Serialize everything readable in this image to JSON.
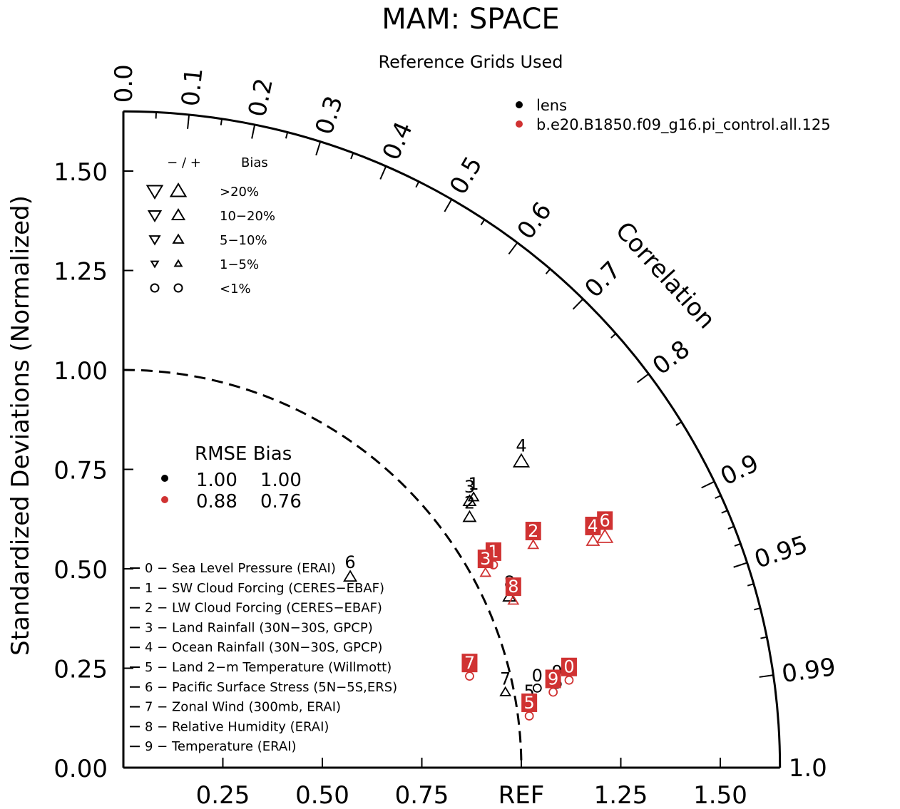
{
  "chart_data": {
    "type": "scatter",
    "diagram": "taylor",
    "title": "MAM: SPACE",
    "subtitle": "Reference Grids Used",
    "ylabel": "Standardized Deviations (Normalized)",
    "correlation_label": "Correlation",
    "x_ticks": [
      "0.25",
      "0.50",
      "0.75",
      "REF",
      "1.25",
      "1.50"
    ],
    "y_ticks": [
      "0.00",
      "0.25",
      "0.50",
      "0.75",
      "1.00",
      "1.25",
      "1.50"
    ],
    "corr_ticks": [
      "0.0",
      "0.1",
      "0.2",
      "0.3",
      "0.4",
      "0.5",
      "0.6",
      "0.7",
      "0.8",
      "0.9",
      "0.95",
      "0.99",
      "1.0"
    ],
    "xlim": [
      0,
      1.65
    ],
    "ylim": [
      0,
      1.65
    ],
    "ref_arc_radius": 1.0,
    "series": [
      {
        "name": "lens",
        "color": "#000000",
        "points": [
          {
            "id": "0",
            "x": 1.04,
            "y": 0.2,
            "bias": "<1%"
          },
          {
            "id": "1",
            "x": 0.88,
            "y": 0.68,
            "bias": "5-10%"
          },
          {
            "id": "2",
            "x": 0.87,
            "y": 0.63,
            "bias": "10-20%"
          },
          {
            "id": "3",
            "x": 0.87,
            "y": 0.67,
            "bias": "10-20%"
          },
          {
            "id": "4",
            "x": 1.0,
            "y": 0.77,
            "bias": ">20%"
          },
          {
            "id": "5",
            "x": 1.02,
            "y": 0.16,
            "bias": "<1%"
          },
          {
            "id": "6",
            "x": 0.57,
            "y": 0.48,
            "bias": "10-20%"
          },
          {
            "id": "7",
            "x": 0.96,
            "y": 0.19,
            "bias": "5-10%"
          },
          {
            "id": "8",
            "x": 0.97,
            "y": 0.43,
            "bias": "10-20%"
          },
          {
            "id": "9",
            "x": 1.09,
            "y": 0.21,
            "bias": "<1%"
          }
        ]
      },
      {
        "name": "b.e20.B1850.f09_g16.pi_control.all.125",
        "color": "#d03232",
        "points": [
          {
            "id": "0",
            "x": 1.12,
            "y": 0.22,
            "bias": "<1%"
          },
          {
            "id": "1",
            "x": 0.93,
            "y": 0.51,
            "bias": "<1%"
          },
          {
            "id": "2",
            "x": 1.03,
            "y": 0.56,
            "bias": "5-10%"
          },
          {
            "id": "3",
            "x": 0.91,
            "y": 0.49,
            "bias": "5-10%"
          },
          {
            "id": "4",
            "x": 1.18,
            "y": 0.57,
            "bias": "10-20%"
          },
          {
            "id": "5",
            "x": 1.02,
            "y": 0.13,
            "bias": "<1%"
          },
          {
            "id": "6",
            "x": 1.21,
            "y": 0.58,
            "bias": ">20%"
          },
          {
            "id": "7",
            "x": 0.87,
            "y": 0.23,
            "bias": "<1%"
          },
          {
            "id": "8",
            "x": 0.98,
            "y": 0.42,
            "bias": "5-10%"
          },
          {
            "id": "9",
            "x": 1.08,
            "y": 0.19,
            "bias": "<1%"
          }
        ]
      }
    ],
    "legend": {
      "placement": "top-right",
      "entries": [
        {
          "label": "lens",
          "color": "#000000"
        },
        {
          "label": "b.e20.B1850.f09_g16.pi_control.all.125",
          "color": "#d03232"
        }
      ]
    },
    "bias_key": {
      "header_sign": "− / +",
      "header_label": "Bias",
      "rows": [
        {
          "label": ">20%",
          "symbol": "triangle",
          "size": 4
        },
        {
          "label": "10−20%",
          "symbol": "triangle",
          "size": 3
        },
        {
          "label": "5−10%",
          "symbol": "triangle",
          "size": 2
        },
        {
          "label": "1−5%",
          "symbol": "triangle",
          "size": 1
        },
        {
          "label": "<1%",
          "symbol": "circle",
          "size": 0
        }
      ]
    },
    "stats_table": {
      "headers": "RMSE Bias",
      "rows": [
        {
          "color": "#000000",
          "rmse": "1.00",
          "bias": "1.00"
        },
        {
          "color": "#d03232",
          "rmse": "0.88",
          "bias": "0.76"
        }
      ]
    },
    "variables": [
      "0 − Sea Level Pressure (ERAI)",
      "1 − SW Cloud Forcing (CERES−EBAF)",
      "2 − LW Cloud Forcing (CERES−EBAF)",
      "3 − Land Rainfall (30N−30S, GPCP)",
      "4 − Ocean Rainfall (30N−30S, GPCP)",
      "5 − Land 2−m Temperature (Willmott)",
      "6 − Pacific Surface Stress (5N−5S,ERS)",
      "7 − Zonal Wind (300mb, ERAI)",
      "8 − Relative Humidity (ERAI)",
      "9 − Temperature (ERAI)"
    ]
  }
}
